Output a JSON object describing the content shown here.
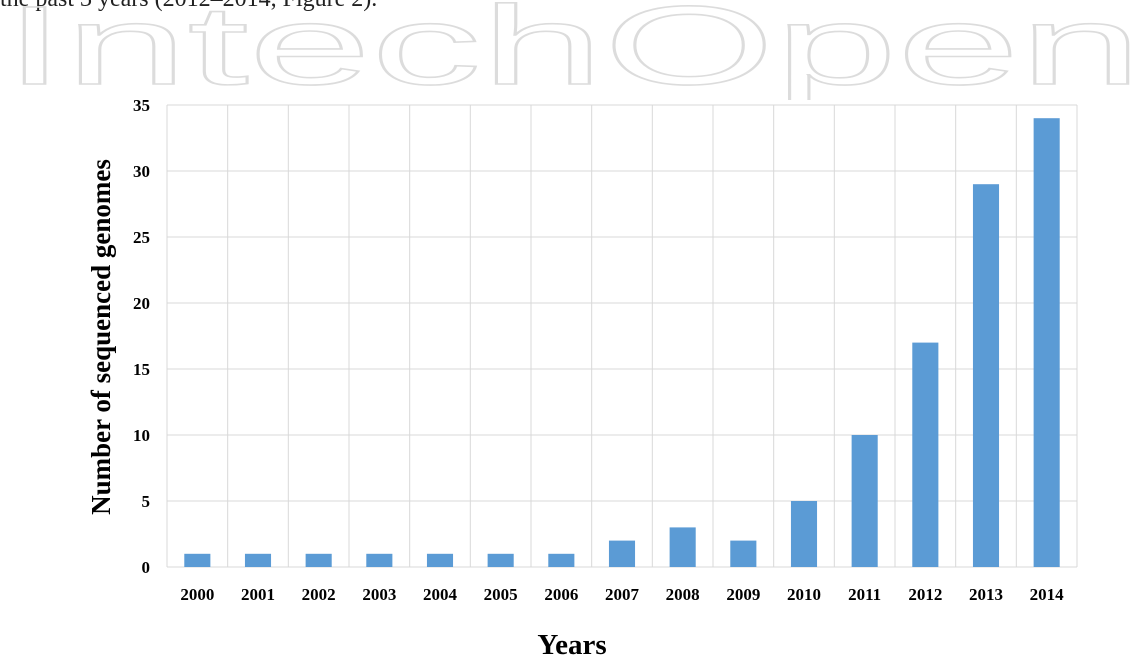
{
  "page": {
    "top_text": "the past 3 years (2012–2014, Figure 2).",
    "watermark": "IntechOpen"
  },
  "colors": {
    "bar": "#5b9bd5",
    "grid": "#d9d9d9",
    "watermark": "#dcdcdc"
  },
  "chart_data": {
    "type": "bar",
    "categories": [
      "2000",
      "2001",
      "2002",
      "2003",
      "2004",
      "2005",
      "2006",
      "2007",
      "2008",
      "2009",
      "2010",
      "2011",
      "2012",
      "2013",
      "2014"
    ],
    "values": [
      1,
      1,
      1,
      1,
      1,
      1,
      1,
      2,
      3,
      2,
      5,
      10,
      17,
      29,
      34
    ],
    "title": "",
    "xlabel": "Years",
    "ylabel": "Number of sequenced genomes",
    "ylim": [
      0,
      35
    ],
    "yticks": [
      0,
      5,
      10,
      15,
      20,
      25,
      30,
      35
    ],
    "grid": true,
    "legend": "none"
  }
}
